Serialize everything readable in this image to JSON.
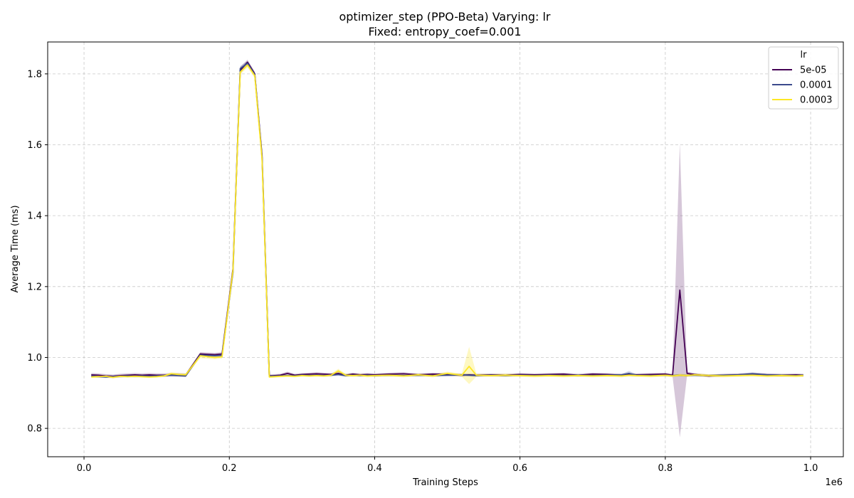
{
  "chart_data": {
    "type": "line",
    "title_line1": "optimizer_step (PPO-Beta) Varying: lr",
    "title_line2": "Fixed: entropy_coef=0.001",
    "xlabel": "Training Steps",
    "ylabel": "Average Time (ms)",
    "x_offset_label": "1e6",
    "xlim": [
      -0.05,
      1.045
    ],
    "ylim": [
      0.72,
      1.89
    ],
    "x_ticks": [
      0.0,
      0.2,
      0.4,
      0.6,
      0.8,
      1.0
    ],
    "x_tick_labels": [
      "0.0",
      "0.2",
      "0.4",
      "0.6",
      "0.8",
      "1.0"
    ],
    "y_ticks": [
      0.8,
      1.0,
      1.2,
      1.4,
      1.6,
      1.8
    ],
    "y_tick_labels": [
      "0.8",
      "1.0",
      "1.2",
      "1.4",
      "1.6",
      "1.8"
    ],
    "grid": true,
    "legend_title": "lr",
    "legend_position": "top-right",
    "x": [
      0.01,
      0.02,
      0.03,
      0.04,
      0.05,
      0.06,
      0.07,
      0.08,
      0.09,
      0.1,
      0.11,
      0.12,
      0.13,
      0.14,
      0.16,
      0.18,
      0.19,
      0.205,
      0.215,
      0.225,
      0.235,
      0.245,
      0.255,
      0.27,
      0.28,
      0.29,
      0.3,
      0.31,
      0.32,
      0.33,
      0.34,
      0.35,
      0.36,
      0.37,
      0.38,
      0.39,
      0.4,
      0.42,
      0.44,
      0.46,
      0.48,
      0.5,
      0.52,
      0.53,
      0.54,
      0.56,
      0.58,
      0.6,
      0.62,
      0.64,
      0.66,
      0.68,
      0.7,
      0.72,
      0.74,
      0.75,
      0.76,
      0.78,
      0.8,
      0.81,
      0.82,
      0.83,
      0.84,
      0.86,
      0.88,
      0.9,
      0.92,
      0.94,
      0.96,
      0.98,
      0.99
    ],
    "series": [
      {
        "name": "5e-05",
        "color": "#440154",
        "band_alpha": 0.22,
        "values": [
          0.951,
          0.95,
          0.948,
          0.947,
          0.949,
          0.95,
          0.951,
          0.95,
          0.951,
          0.95,
          0.95,
          0.951,
          0.951,
          0.95,
          1.01,
          1.008,
          1.01,
          1.25,
          1.81,
          1.833,
          1.8,
          1.57,
          0.948,
          0.95,
          0.955,
          0.95,
          0.952,
          0.953,
          0.954,
          0.953,
          0.952,
          0.955,
          0.95,
          0.953,
          0.951,
          0.952,
          0.951,
          0.953,
          0.954,
          0.951,
          0.953,
          0.952,
          0.95,
          0.951,
          0.95,
          0.951,
          0.95,
          0.952,
          0.951,
          0.952,
          0.953,
          0.95,
          0.953,
          0.952,
          0.95,
          0.952,
          0.951,
          0.952,
          0.953,
          0.95,
          1.19,
          0.955,
          0.952,
          0.948,
          0.95,
          0.951,
          0.953,
          0.951,
          0.95,
          0.951,
          0.95
        ],
        "lower": [
          0.946,
          0.945,
          0.943,
          0.942,
          0.944,
          0.945,
          0.946,
          0.945,
          0.946,
          0.945,
          0.945,
          0.946,
          0.946,
          0.945,
          1.005,
          1.003,
          1.005,
          1.24,
          1.8,
          1.826,
          1.794,
          1.56,
          0.944,
          0.946,
          0.95,
          0.946,
          0.948,
          0.949,
          0.95,
          0.949,
          0.948,
          0.95,
          0.946,
          0.949,
          0.947,
          0.948,
          0.947,
          0.949,
          0.95,
          0.947,
          0.949,
          0.948,
          0.946,
          0.947,
          0.946,
          0.947,
          0.946,
          0.948,
          0.947,
          0.948,
          0.949,
          0.946,
          0.949,
          0.948,
          0.946,
          0.948,
          0.947,
          0.948,
          0.949,
          0.946,
          0.775,
          0.95,
          0.948,
          0.944,
          0.946,
          0.947,
          0.949,
          0.947,
          0.946,
          0.947,
          0.946
        ],
        "upper": [
          0.956,
          0.955,
          0.953,
          0.952,
          0.954,
          0.955,
          0.956,
          0.955,
          0.956,
          0.955,
          0.955,
          0.956,
          0.956,
          0.955,
          1.015,
          1.013,
          1.015,
          1.26,
          1.82,
          1.84,
          1.806,
          1.58,
          0.952,
          0.954,
          0.96,
          0.954,
          0.956,
          0.957,
          0.958,
          0.957,
          0.956,
          0.96,
          0.954,
          0.957,
          0.955,
          0.956,
          0.955,
          0.957,
          0.958,
          0.955,
          0.957,
          0.956,
          0.954,
          0.955,
          0.954,
          0.955,
          0.954,
          0.956,
          0.955,
          0.956,
          0.957,
          0.954,
          0.957,
          0.956,
          0.954,
          0.956,
          0.955,
          0.956,
          0.957,
          0.954,
          1.605,
          0.96,
          0.956,
          0.952,
          0.954,
          0.955,
          0.957,
          0.955,
          0.954,
          0.955,
          0.954
        ]
      },
      {
        "name": "0.0001",
        "color": "#3b4a8c",
        "band_alpha": 0.22,
        "values": [
          0.947,
          0.946,
          0.945,
          0.946,
          0.947,
          0.948,
          0.947,
          0.948,
          0.947,
          0.948,
          0.949,
          0.95,
          0.949,
          0.948,
          1.007,
          1.005,
          1.006,
          1.24,
          1.815,
          1.83,
          1.798,
          1.565,
          0.947,
          0.948,
          0.949,
          0.948,
          0.95,
          0.949,
          0.95,
          0.949,
          0.95,
          0.952,
          0.949,
          0.95,
          0.949,
          0.95,
          0.949,
          0.95,
          0.949,
          0.95,
          0.949,
          0.95,
          0.951,
          0.95,
          0.949,
          0.95,
          0.949,
          0.95,
          0.949,
          0.95,
          0.949,
          0.95,
          0.949,
          0.95,
          0.951,
          0.955,
          0.95,
          0.949,
          0.95,
          0.949,
          0.95,
          0.949,
          0.95,
          0.949,
          0.95,
          0.951,
          0.954,
          0.951,
          0.95,
          0.949,
          0.95
        ],
        "lower": [
          0.944,
          0.943,
          0.942,
          0.943,
          0.944,
          0.945,
          0.944,
          0.945,
          0.944,
          0.945,
          0.946,
          0.947,
          0.946,
          0.945,
          1.003,
          1.001,
          1.002,
          1.23,
          1.808,
          1.824,
          1.792,
          1.556,
          0.944,
          0.945,
          0.946,
          0.945,
          0.947,
          0.946,
          0.947,
          0.946,
          0.947,
          0.948,
          0.946,
          0.947,
          0.946,
          0.947,
          0.946,
          0.947,
          0.946,
          0.947,
          0.946,
          0.947,
          0.948,
          0.947,
          0.946,
          0.947,
          0.946,
          0.947,
          0.946,
          0.947,
          0.946,
          0.947,
          0.946,
          0.947,
          0.948,
          0.948,
          0.947,
          0.946,
          0.947,
          0.946,
          0.947,
          0.946,
          0.947,
          0.946,
          0.947,
          0.948,
          0.95,
          0.948,
          0.947,
          0.946,
          0.947
        ],
        "upper": [
          0.95,
          0.949,
          0.948,
          0.949,
          0.95,
          0.951,
          0.95,
          0.951,
          0.95,
          0.951,
          0.952,
          0.953,
          0.952,
          0.951,
          1.011,
          1.009,
          1.01,
          1.25,
          1.822,
          1.836,
          1.804,
          1.574,
          0.95,
          0.951,
          0.952,
          0.951,
          0.953,
          0.952,
          0.953,
          0.952,
          0.953,
          0.956,
          0.952,
          0.953,
          0.952,
          0.953,
          0.952,
          0.953,
          0.952,
          0.953,
          0.952,
          0.953,
          0.954,
          0.953,
          0.952,
          0.953,
          0.952,
          0.953,
          0.952,
          0.953,
          0.952,
          0.953,
          0.952,
          0.953,
          0.954,
          0.962,
          0.953,
          0.952,
          0.953,
          0.952,
          0.953,
          0.952,
          0.953,
          0.952,
          0.953,
          0.954,
          0.958,
          0.954,
          0.953,
          0.952,
          0.953
        ]
      },
      {
        "name": "0.0003",
        "color": "#fde725",
        "band_alpha": 0.28,
        "values": [
          0.945,
          0.946,
          0.947,
          0.944,
          0.947,
          0.946,
          0.947,
          0.946,
          0.945,
          0.946,
          0.948,
          0.954,
          0.952,
          0.951,
          1.005,
          1.0,
          1.002,
          1.245,
          1.805,
          1.825,
          1.795,
          1.56,
          0.945,
          0.947,
          0.948,
          0.947,
          0.949,
          0.948,
          0.949,
          0.948,
          0.95,
          0.962,
          0.95,
          0.949,
          0.95,
          0.948,
          0.949,
          0.95,
          0.948,
          0.951,
          0.948,
          0.955,
          0.95,
          0.975,
          0.95,
          0.949,
          0.95,
          0.949,
          0.948,
          0.949,
          0.948,
          0.949,
          0.948,
          0.949,
          0.948,
          0.95,
          0.949,
          0.948,
          0.95,
          0.948,
          0.95,
          0.949,
          0.951,
          0.949,
          0.948,
          0.949,
          0.95,
          0.948,
          0.949,
          0.948,
          0.949
        ],
        "lower": [
          0.942,
          0.943,
          0.944,
          0.941,
          0.944,
          0.943,
          0.944,
          0.943,
          0.942,
          0.943,
          0.945,
          0.95,
          0.948,
          0.947,
          0.998,
          0.995,
          0.997,
          1.235,
          1.798,
          1.818,
          1.788,
          1.55,
          0.942,
          0.944,
          0.945,
          0.944,
          0.946,
          0.945,
          0.946,
          0.945,
          0.946,
          0.956,
          0.946,
          0.945,
          0.946,
          0.944,
          0.945,
          0.946,
          0.944,
          0.947,
          0.944,
          0.95,
          0.946,
          0.925,
          0.946,
          0.945,
          0.946,
          0.945,
          0.944,
          0.945,
          0.944,
          0.945,
          0.944,
          0.945,
          0.944,
          0.946,
          0.945,
          0.944,
          0.946,
          0.944,
          0.946,
          0.945,
          0.947,
          0.945,
          0.944,
          0.945,
          0.946,
          0.944,
          0.945,
          0.944,
          0.945
        ],
        "upper": [
          0.948,
          0.949,
          0.95,
          0.947,
          0.95,
          0.949,
          0.95,
          0.949,
          0.948,
          0.949,
          0.951,
          0.958,
          0.956,
          0.955,
          1.012,
          1.005,
          1.007,
          1.255,
          1.812,
          1.832,
          1.802,
          1.57,
          0.948,
          0.95,
          0.951,
          0.95,
          0.952,
          0.951,
          0.952,
          0.951,
          0.954,
          0.968,
          0.954,
          0.953,
          0.954,
          0.952,
          0.953,
          0.954,
          0.952,
          0.955,
          0.952,
          0.96,
          0.954,
          1.03,
          0.954,
          0.953,
          0.954,
          0.953,
          0.952,
          0.953,
          0.952,
          0.953,
          0.952,
          0.953,
          0.952,
          0.954,
          0.953,
          0.952,
          0.954,
          0.952,
          0.954,
          0.953,
          0.955,
          0.953,
          0.952,
          0.953,
          0.954,
          0.952,
          0.953,
          0.952,
          0.953
        ]
      }
    ]
  }
}
